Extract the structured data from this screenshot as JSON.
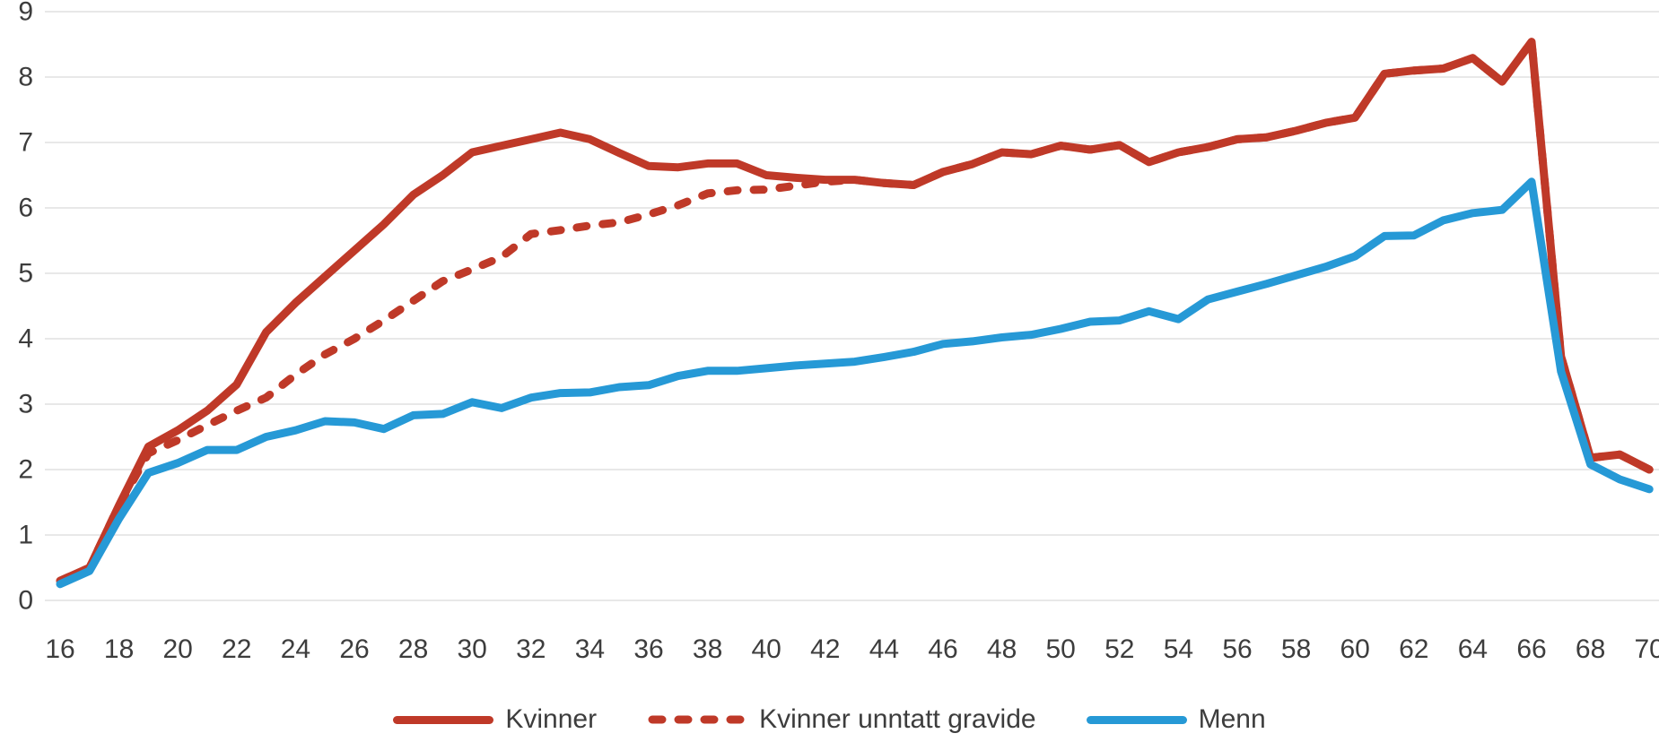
{
  "chart_data": {
    "type": "line",
    "title": "",
    "xlabel": "",
    "ylabel": "",
    "x_min": 16,
    "x_max": 70,
    "x_step": 1,
    "ylim": [
      0,
      9
    ],
    "y_ticks": [
      0,
      1,
      2,
      3,
      4,
      5,
      6,
      7,
      8,
      9
    ],
    "x_tick_labels": [
      16,
      18,
      20,
      22,
      24,
      26,
      28,
      30,
      32,
      34,
      36,
      38,
      40,
      42,
      44,
      46,
      48,
      50,
      52,
      54,
      56,
      58,
      60,
      62,
      64,
      66,
      68,
      70
    ],
    "grid": "horizontal",
    "legend_position": "bottom-center",
    "series": [
      {
        "name": "Kvinner",
        "style": "solid",
        "color": "#bf3928",
        "values": [
          0.3,
          0.5,
          1.45,
          2.35,
          2.6,
          2.9,
          3.3,
          4.1,
          4.55,
          4.95,
          5.35,
          5.75,
          6.2,
          6.5,
          6.85,
          6.95,
          7.05,
          7.15,
          7.05,
          6.84,
          6.64,
          6.62,
          6.68,
          6.68,
          6.5,
          6.46,
          6.43,
          6.43,
          6.38,
          6.35,
          6.55,
          6.67,
          6.85,
          6.82,
          6.95,
          6.89,
          6.96,
          6.7,
          6.85,
          6.93,
          7.05,
          7.08,
          7.18,
          7.3,
          7.38,
          8.05,
          8.1,
          8.13,
          8.29,
          7.93,
          8.54,
          3.73,
          2.18,
          2.23,
          2.0
        ]
      },
      {
        "name": "Kvinner unntatt gravide",
        "style": "dashed",
        "color": "#bf3928",
        "values": [
          0.3,
          0.5,
          1.45,
          2.25,
          2.45,
          2.68,
          2.9,
          3.1,
          3.45,
          3.76,
          4.0,
          4.28,
          4.58,
          4.88,
          5.06,
          5.25,
          5.6,
          5.66,
          5.73,
          5.78,
          5.9,
          6.04,
          6.22,
          6.27,
          6.28,
          6.34,
          6.4,
          6.43,
          6.38,
          6.35,
          6.55,
          6.67,
          6.85,
          6.82,
          6.95,
          6.89,
          6.96,
          6.7,
          6.85,
          6.93,
          7.05,
          7.08,
          7.18,
          7.3,
          7.38,
          8.05,
          8.1,
          8.13,
          8.29,
          7.93,
          8.54,
          3.73,
          2.18,
          2.23,
          2.0
        ]
      },
      {
        "name": "Menn",
        "style": "solid",
        "color": "#2699d6",
        "values": [
          0.25,
          0.45,
          1.25,
          1.95,
          2.1,
          2.3,
          2.3,
          2.5,
          2.6,
          2.74,
          2.72,
          2.62,
          2.83,
          2.85,
          3.03,
          2.94,
          3.1,
          3.17,
          3.18,
          3.26,
          3.29,
          3.43,
          3.51,
          3.51,
          3.55,
          3.59,
          3.62,
          3.65,
          3.72,
          3.8,
          3.92,
          3.96,
          4.02,
          4.06,
          4.15,
          4.26,
          4.28,
          4.42,
          4.3,
          4.6,
          4.72,
          4.84,
          4.97,
          5.1,
          5.26,
          5.57,
          5.58,
          5.81,
          5.92,
          5.97,
          6.4,
          3.5,
          2.08,
          1.85,
          1.7
        ]
      }
    ],
    "colors": {
      "grid": "#d9d9d9",
      "tick_text": "#3d3d3d"
    }
  },
  "legend": {
    "items": [
      {
        "label": "Kvinner"
      },
      {
        "label": "Kvinner unntatt gravide"
      },
      {
        "label": "Menn"
      }
    ]
  }
}
